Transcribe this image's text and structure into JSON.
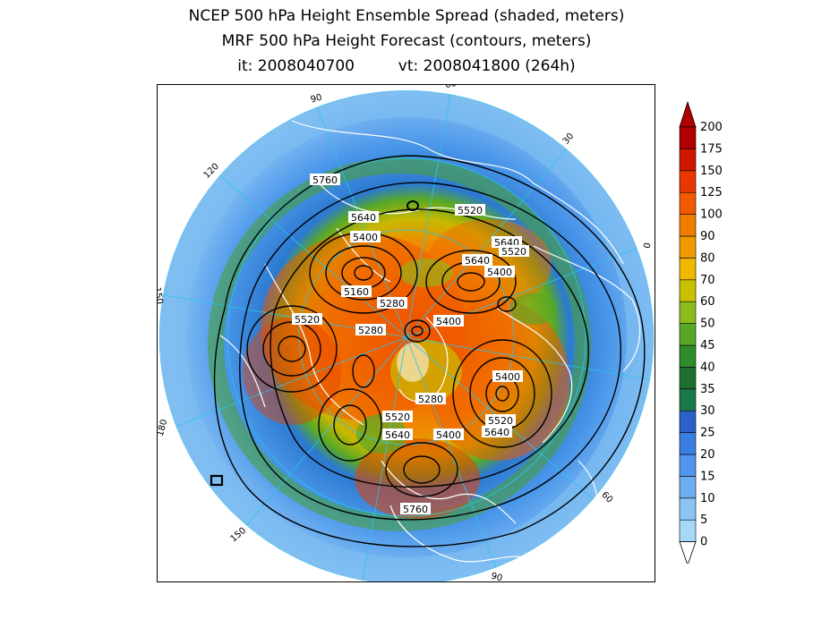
{
  "title": {
    "line1": "NCEP 500 hPa Height Ensemble Spread (shaded, meters)",
    "line2": "MRF 500 hPa Height Forecast (contours, meters)",
    "init": "it: 2008040700",
    "valid": "vt: 2008041800 (264h)"
  },
  "map": {
    "projection": "north polar stereographic",
    "longitude_labels": [
      "60",
      "30",
      "0",
      "-30",
      "-60",
      "-90",
      "-120",
      "-150",
      "180",
      "150",
      "120",
      "90"
    ],
    "longitude_label_text": [
      "60",
      "30",
      "0",
      "30",
      "60",
      "90",
      "120",
      "150",
      "180",
      "150",
      "120",
      "90"
    ],
    "contour_labels": [
      "5760",
      "5640",
      "5520",
      "5400",
      "5640",
      "5520",
      "5640",
      "5400",
      "5160",
      "5280",
      "5520",
      "5280",
      "5400",
      "5400",
      "5280",
      "5520",
      "5640",
      "5400",
      "5520",
      "5640",
      "5760"
    ],
    "colors": {
      "coastline": "#ffffff",
      "contour": "#000000",
      "graticule": "#29c6e8"
    }
  },
  "colorbar": {
    "levels": [
      "0",
      "5",
      "10",
      "15",
      "20",
      "25",
      "30",
      "35",
      "40",
      "45",
      "50",
      "60",
      "70",
      "80",
      "90",
      "100",
      "125",
      "150",
      "175",
      "200"
    ],
    "colors": [
      "#a8d8f8",
      "#8cc4f4",
      "#6eaef0",
      "#5096ea",
      "#3a7ee0",
      "#2c62c8",
      "#1a7a4a",
      "#1e6e2e",
      "#2e8c2a",
      "#58a828",
      "#8cbc1c",
      "#c8c000",
      "#f0b800",
      "#f09a00",
      "#f07c00",
      "#f05a00",
      "#e83800",
      "#d01800",
      "#b00000"
    ]
  }
}
